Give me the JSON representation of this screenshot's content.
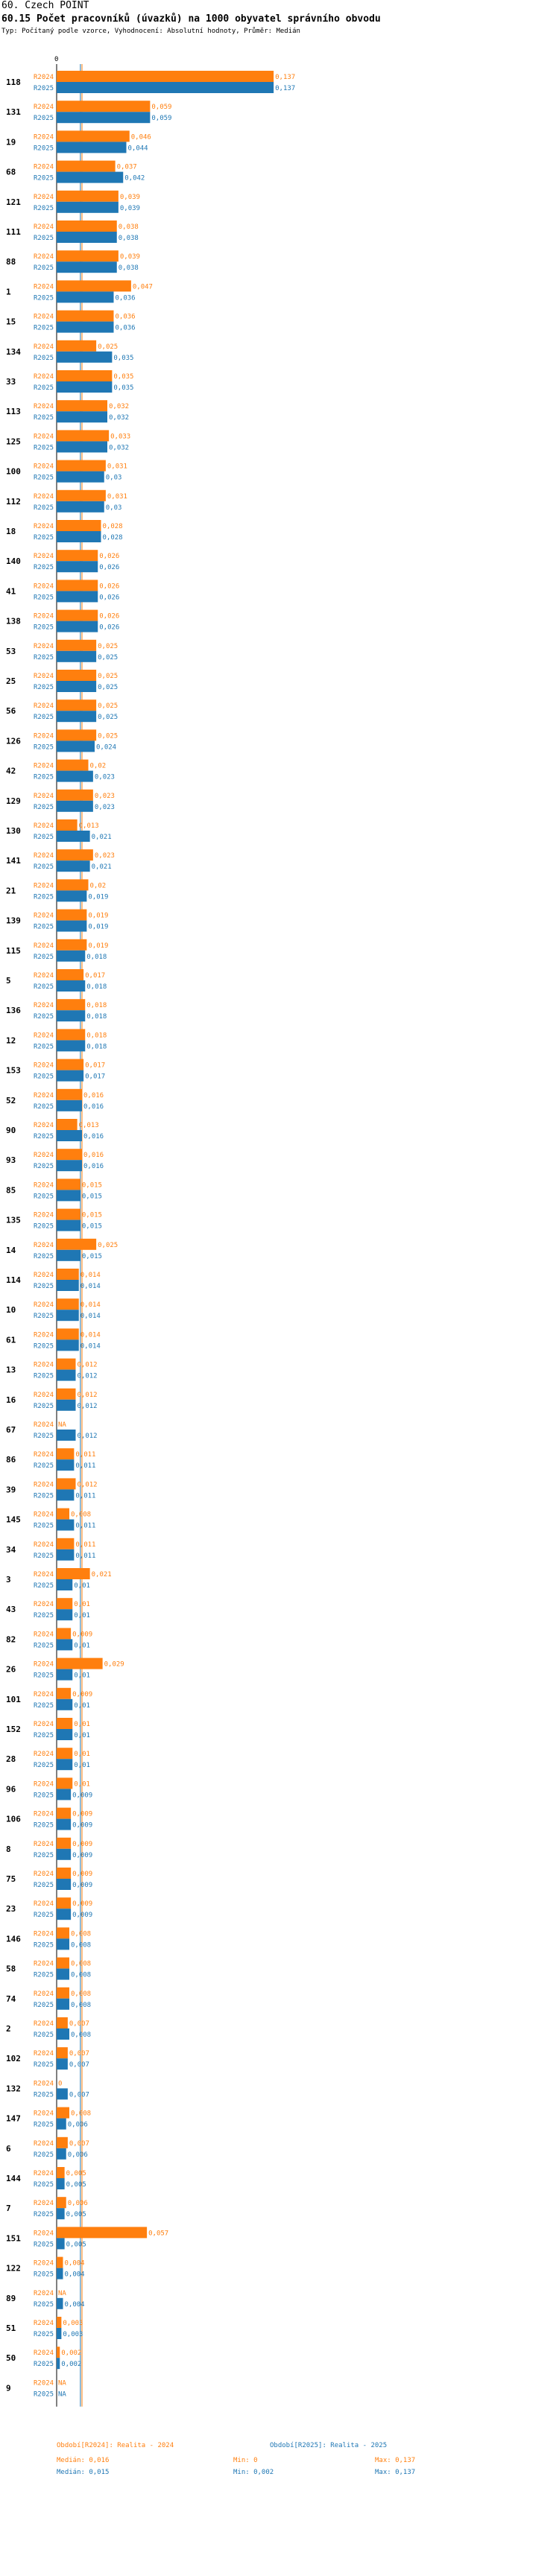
{
  "header": {
    "line1": "60. Czech POINT",
    "line2": "60.15 Počet pracovníků (úvazků) na 1000 obyvatel správního obvodu",
    "line3": "Typ: Počítaný podle vzorce, Vyhodnocení: Absolutní hodnoty, Průměr: Medián"
  },
  "chart_data": {
    "type": "bar",
    "orientation": "horizontal",
    "x_axis_tick": "0",
    "series": [
      {
        "name": "R2024",
        "color": "#ff7f0e"
      },
      {
        "name": "R2025",
        "color": "#1f77b4"
      }
    ],
    "categories": [
      "118",
      "131",
      "19",
      "68",
      "121",
      "111",
      "88",
      "1",
      "15",
      "134",
      "33",
      "113",
      "125",
      "100",
      "112",
      "18",
      "140",
      "41",
      "138",
      "53",
      "25",
      "56",
      "126",
      "42",
      "129",
      "130",
      "141",
      "21",
      "139",
      "115",
      "5",
      "136",
      "12",
      "153",
      "52",
      "90",
      "93",
      "85",
      "135",
      "14",
      "114",
      "10",
      "61",
      "13",
      "16",
      "67",
      "86",
      "39",
      "145",
      "34",
      "3",
      "43",
      "82",
      "26",
      "101",
      "152",
      "28",
      "96",
      "106",
      "8",
      "75",
      "23",
      "146",
      "58",
      "74",
      "2",
      "102",
      "132",
      "147",
      "6",
      "144",
      "7",
      "151",
      "122",
      "89",
      "51",
      "50",
      "9"
    ],
    "values_2024": [
      0.137,
      0.059,
      0.046,
      0.037,
      0.039,
      0.038,
      0.039,
      0.047,
      0.036,
      0.025,
      0.035,
      0.032,
      0.033,
      0.031,
      0.031,
      0.028,
      0.026,
      0.026,
      0.026,
      0.025,
      0.025,
      0.025,
      0.025,
      0.02,
      0.023,
      0.013,
      0.023,
      0.02,
      0.019,
      0.019,
      0.017,
      0.018,
      0.018,
      0.017,
      0.016,
      0.013,
      0.016,
      0.015,
      0.015,
      0.025,
      0.014,
      0.014,
      0.014,
      0.012,
      0.012,
      null,
      0.011,
      0.012,
      0.008,
      0.011,
      0.021,
      0.01,
      0.009,
      0.029,
      0.009,
      0.01,
      0.01,
      0.01,
      0.009,
      0.009,
      0.009,
      0.009,
      0.008,
      0.008,
      0.008,
      0.007,
      0.007,
      0,
      0.008,
      0.007,
      0.005,
      0.006,
      0.057,
      0.004,
      null,
      0.003,
      0.002,
      null
    ],
    "values_2025": [
      0.137,
      0.059,
      0.044,
      0.042,
      0.039,
      0.038,
      0.038,
      0.036,
      0.036,
      0.035,
      0.035,
      0.032,
      0.032,
      0.03,
      0.03,
      0.028,
      0.026,
      0.026,
      0.026,
      0.025,
      0.025,
      0.025,
      0.024,
      0.023,
      0.023,
      0.021,
      0.021,
      0.019,
      0.019,
      0.018,
      0.018,
      0.018,
      0.018,
      0.017,
      0.016,
      0.016,
      0.016,
      0.015,
      0.015,
      0.015,
      0.014,
      0.014,
      0.014,
      0.012,
      0.012,
      0.012,
      0.011,
      0.011,
      0.011,
      0.011,
      0.01,
      0.01,
      0.01,
      0.01,
      0.01,
      0.01,
      0.01,
      0.009,
      0.009,
      0.009,
      0.009,
      0.009,
      0.008,
      0.008,
      0.008,
      0.008,
      0.007,
      0.007,
      0.006,
      0.006,
      0.005,
      0.005,
      0.005,
      0.004,
      0.004,
      0.003,
      0.002,
      null
    ],
    "labels_2024": [
      "0,137",
      "0,059",
      "0,046",
      "0,037",
      "0,039",
      "0,038",
      "0,039",
      "0,047",
      "0,036",
      "0,025",
      "0,035",
      "0,032",
      "0,033",
      "0,031",
      "0,031",
      "0,028",
      "0,026",
      "0,026",
      "0,026",
      "0,025",
      "0,025",
      "0,025",
      "0,025",
      "0,02",
      "0,023",
      "0,013",
      "0,023",
      "0,02",
      "0,019",
      "0,019",
      "0,017",
      "0,018",
      "0,018",
      "0,017",
      "0,016",
      "0,013",
      "0,016",
      "0,015",
      "0,015",
      "0,025",
      "0,014",
      "0,014",
      "0,014",
      "0,012",
      "0,012",
      "NA",
      "0,011",
      "0,012",
      "0,008",
      "0,011",
      "0,021",
      "0,01",
      "0,009",
      "0,029",
      "0,009",
      "0,01",
      "0,01",
      "0,01",
      "0,009",
      "0,009",
      "0,009",
      "0,009",
      "0,008",
      "0,008",
      "0,008",
      "0,007",
      "0,007",
      "0",
      "0,008",
      "0,007",
      "0,005",
      "0,006",
      "0,057",
      "0,004",
      "NA",
      "0,003",
      "0,002",
      "NA"
    ],
    "labels_2025": [
      "0,137",
      "0,059",
      "0,044",
      "0,042",
      "0,039",
      "0,038",
      "0,038",
      "0,036",
      "0,036",
      "0,035",
      "0,035",
      "0,032",
      "0,032",
      "0,03",
      "0,03",
      "0,028",
      "0,026",
      "0,026",
      "0,026",
      "0,025",
      "0,025",
      "0,025",
      "0,024",
      "0,023",
      "0,023",
      "0,021",
      "0,021",
      "0,019",
      "0,019",
      "0,018",
      "0,018",
      "0,018",
      "0,018",
      "0,017",
      "0,016",
      "0,016",
      "0,016",
      "0,015",
      "0,015",
      "0,015",
      "0,014",
      "0,014",
      "0,014",
      "0,012",
      "0,012",
      "0,012",
      "0,011",
      "0,011",
      "0,011",
      "0,011",
      "0,01",
      "0,01",
      "0,01",
      "0,01",
      "0,01",
      "0,01",
      "0,01",
      "0,009",
      "0,009",
      "0,009",
      "0,009",
      "0,009",
      "0,008",
      "0,008",
      "0,008",
      "0,008",
      "0,007",
      "0,007",
      "0,006",
      "0,006",
      "0,005",
      "0,005",
      "0,005",
      "0,004",
      "0,004",
      "0,003",
      "0,002",
      "NA"
    ],
    "median_2024": 0.016,
    "median_2025": 0.015
  },
  "footer": {
    "legend_2024": "Období[R2024]: Realita - 2024",
    "legend_2025": "Období[R2025]: Realita - 2025",
    "median_2024": "Medián: 0,016",
    "min_2024": "Min: 0",
    "max_2024": "Max: 0,137",
    "median_2025": "Medián: 0,015",
    "min_2025": "Min: 0,002",
    "max_2025": "Max: 0,137"
  }
}
